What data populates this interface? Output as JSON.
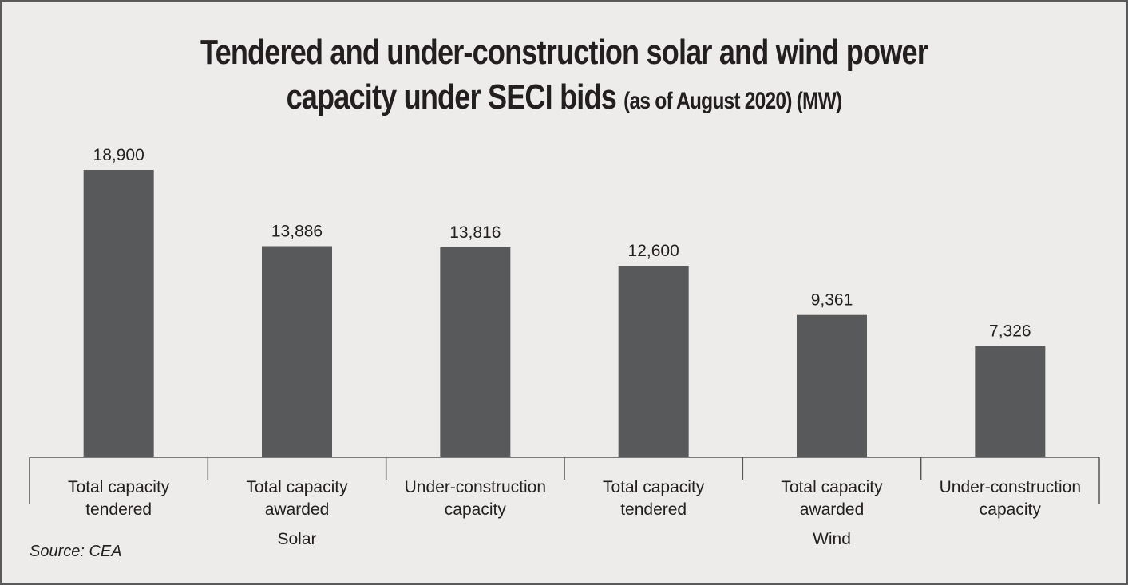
{
  "chart_data": {
    "type": "bar",
    "title_line1": "Tendered and under-construction solar and wind power",
    "title_line2": "capacity under SECI bids",
    "title_suffix": "(as of August 2020) (MW)",
    "categories": [
      [
        "Total capacity",
        "tendered"
      ],
      [
        "Total capacity",
        "awarded"
      ],
      [
        "Under-construction",
        "capacity"
      ],
      [
        "Total capacity",
        "tendered"
      ],
      [
        "Total capacity",
        "awarded"
      ],
      [
        "Under-construction",
        "capacity"
      ]
    ],
    "groups": [
      {
        "label": "Solar",
        "members": [
          0,
          1,
          2
        ]
      },
      {
        "label": "Wind",
        "members": [
          3,
          4,
          5
        ]
      }
    ],
    "values": [
      18900,
      13886,
      13816,
      12600,
      9361,
      7326
    ],
    "data_labels": [
      "18,900",
      "13,886",
      "13,816",
      "12,600",
      "9,361",
      "7,326"
    ],
    "ylim": [
      0,
      18900
    ],
    "grid": false,
    "bar_color": "#58595b",
    "source": "Source: CEA"
  }
}
